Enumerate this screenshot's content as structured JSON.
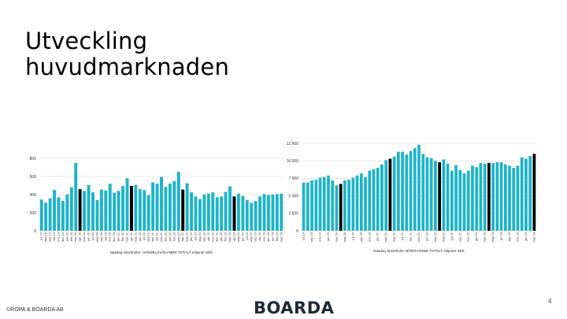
{
  "slide": {
    "title_line1": "Utveckling",
    "title_line2": "huvudmarknaden",
    "copyright": "©ROPA & BOARDA AB",
    "logo": "BOARDA",
    "page_number": "4"
  },
  "colors": {
    "bar": "#1fb3c7",
    "highlight": "#000000",
    "grid": "#d9d9d9"
  },
  "chart_data": [
    {
      "type": "bar",
      "caption": "Nasdaq Stockholm: HANDELSVOLYMER TOTALT miljoner SEK",
      "ylim": [
        0,
        800
      ],
      "yticks": [
        0,
        200,
        400,
        600,
        800
      ],
      "grid": true,
      "highlight_color": "#000000",
      "categories": [
        "jul 19",
        "aug 19",
        "sep 19",
        "okt 19",
        "nov 19",
        "dec 19",
        "jan 20",
        "feb 20",
        "mar 20",
        "apr 20",
        "maj 20",
        "jun 20",
        "jul 20",
        "aug 20",
        "sep 20",
        "okt 20",
        "nov 20",
        "dec 20",
        "jan 21",
        "feb 21",
        "mar 21",
        "apr 21",
        "maj 21",
        "jun 21",
        "jul 21",
        "aug 21",
        "sep 21",
        "okt 21",
        "nov 21",
        "dec 21",
        "jan 22",
        "feb 22",
        "mar 22",
        "apr 22",
        "maj 22",
        "jun 22",
        "jul 22",
        "aug 22",
        "sep 22",
        "okt 22",
        "nov 22",
        "dec 22",
        "jan 23",
        "feb 23",
        "mar 23",
        "apr 23",
        "maj 23",
        "jun 23",
        "jul 23",
        "aug 23",
        "sep 23",
        "okt 23",
        "nov 23",
        "dec 23",
        "jan 24",
        "feb 24",
        "mar 24"
      ],
      "values": [
        345,
        310,
        360,
        450,
        370,
        330,
        400,
        480,
        750,
        460,
        440,
        505,
        425,
        340,
        455,
        445,
        520,
        420,
        440,
        495,
        580,
        495,
        505,
        460,
        450,
        395,
        535,
        520,
        595,
        485,
        520,
        550,
        650,
        455,
        525,
        425,
        380,
        350,
        400,
        410,
        425,
        370,
        380,
        430,
        490,
        380,
        410,
        385,
        340,
        310,
        330,
        380,
        405,
        395,
        400,
        405,
        410
      ],
      "highlight": [
        9,
        21,
        33,
        45
      ]
    },
    {
      "type": "bar",
      "caption": "Nasdaq Stockholm: BÖRSVÄRDE TOTALT miljoner SEK",
      "ylim": [
        0,
        12500
      ],
      "yticks": [
        0,
        2500,
        5000,
        7500,
        10000,
        12500
      ],
      "ytick_labels": [
        "0",
        "2 500",
        "5 000",
        "7 500",
        "10 000",
        "12 500"
      ],
      "grid": true,
      "highlight_color": "#000000",
      "categories": [
        "jul 19",
        "aug 19",
        "sep 19",
        "okt 19",
        "nov 19",
        "dec 19",
        "jan 20",
        "feb 20",
        "mar 20",
        "apr 20",
        "maj 20",
        "jun 20",
        "jul 20",
        "aug 20",
        "sep 20",
        "okt 20",
        "nov 20",
        "dec 20",
        "jan 21",
        "feb 21",
        "mar 21",
        "apr 21",
        "maj 21",
        "jun 21",
        "jul 21",
        "aug 21",
        "sep 21",
        "okt 21",
        "nov 21",
        "dec 21",
        "jan 22",
        "feb 22",
        "mar 22",
        "apr 22",
        "maj 22",
        "jun 22",
        "jul 22",
        "aug 22",
        "sep 22",
        "okt 22",
        "nov 22",
        "dec 22",
        "jan 23",
        "feb 23",
        "mar 23",
        "apr 23",
        "maj 23",
        "jun 23",
        "jul 23",
        "aug 23",
        "sep 23",
        "okt 23",
        "nov 23",
        "dec 23",
        "jan 24",
        "feb 24",
        "mar 24"
      ],
      "tick_labels": [
        "jul 19",
        "",
        "sep 19",
        "",
        "nov 19",
        "",
        "jan 20",
        "",
        "mar 20",
        "",
        "maj 20",
        "",
        "jul 20",
        "",
        "sep 20",
        "",
        "nov 20",
        "",
        "jan 21",
        "",
        "mar 21",
        "",
        "maj 21",
        "",
        "jul 21",
        "",
        "sep 21",
        "",
        "nov 21",
        "",
        "jan 22",
        "",
        "mar 22",
        "",
        "maj 22",
        "",
        "jul 22",
        "",
        "sep 22",
        "",
        "nov 22",
        "",
        "jan 23",
        "",
        "mar 23",
        "",
        "maj 23",
        "",
        "jul 23",
        "",
        "sep 23",
        "",
        "nov 23",
        "",
        "jan 24",
        "",
        "mar 24"
      ],
      "values": [
        6900,
        6900,
        7200,
        7300,
        7600,
        7700,
        7900,
        7200,
        6500,
        6700,
        7200,
        7300,
        7600,
        7900,
        8200,
        7700,
        8600,
        8800,
        9000,
        9500,
        10100,
        10300,
        10600,
        11300,
        11300,
        10900,
        11400,
        11800,
        12300,
        11000,
        10500,
        10400,
        10000,
        9800,
        10200,
        9600,
        8600,
        9400,
        8700,
        8200,
        8600,
        9300,
        9100,
        9700,
        9600,
        9700,
        9700,
        9800,
        9800,
        9500,
        9300,
        9000,
        9300,
        10500,
        10300,
        10700,
        11000
      ],
      "highlight": [
        9,
        21,
        33,
        45,
        56
      ]
    }
  ]
}
